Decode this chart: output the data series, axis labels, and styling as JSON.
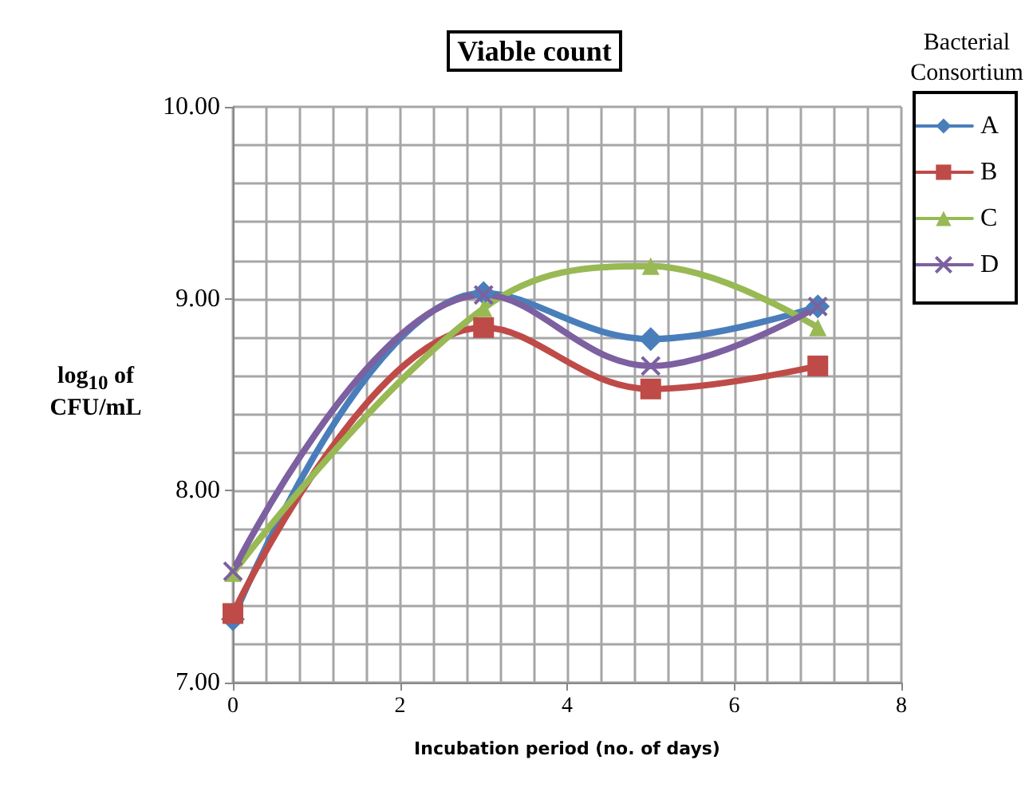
{
  "chart_data": {
    "type": "line",
    "title": "Viable count",
    "xlabel": "Incubation period (no. of days)",
    "ylabel": "log$_{10}$ of CFU/mL",
    "legend_title": "Bacterial Consortium",
    "legend": "top right",
    "grid": true,
    "line_style": "solid",
    "x": [
      0,
      3,
      5,
      7
    ],
    "xlim": [
      0,
      8
    ],
    "xticks": [
      0,
      2,
      4,
      6,
      8
    ],
    "ylim": [
      7,
      10
    ],
    "yticks": [
      {
        "value": 7,
        "label": "7.00"
      },
      {
        "value": 8,
        "label": "8.00"
      },
      {
        "value": 9,
        "label": "9.00"
      },
      {
        "value": 10,
        "label": "10.00"
      }
    ],
    "series": [
      {
        "name": "A",
        "color": "#4a7ebb",
        "marker": "diamond",
        "values": [
          7.33,
          9.03,
          8.79,
          8.96
        ]
      },
      {
        "name": "B",
        "color": "#be4b48",
        "marker": "square",
        "values": [
          7.36,
          8.85,
          8.53,
          8.65
        ]
      },
      {
        "name": "C",
        "color": "#98b954",
        "marker": "triangle",
        "values": [
          7.57,
          8.95,
          9.17,
          8.85
        ]
      },
      {
        "name": "D",
        "color": "#7d60a0",
        "marker": "cross",
        "values": [
          7.58,
          9.02,
          8.65,
          8.96
        ]
      }
    ]
  }
}
